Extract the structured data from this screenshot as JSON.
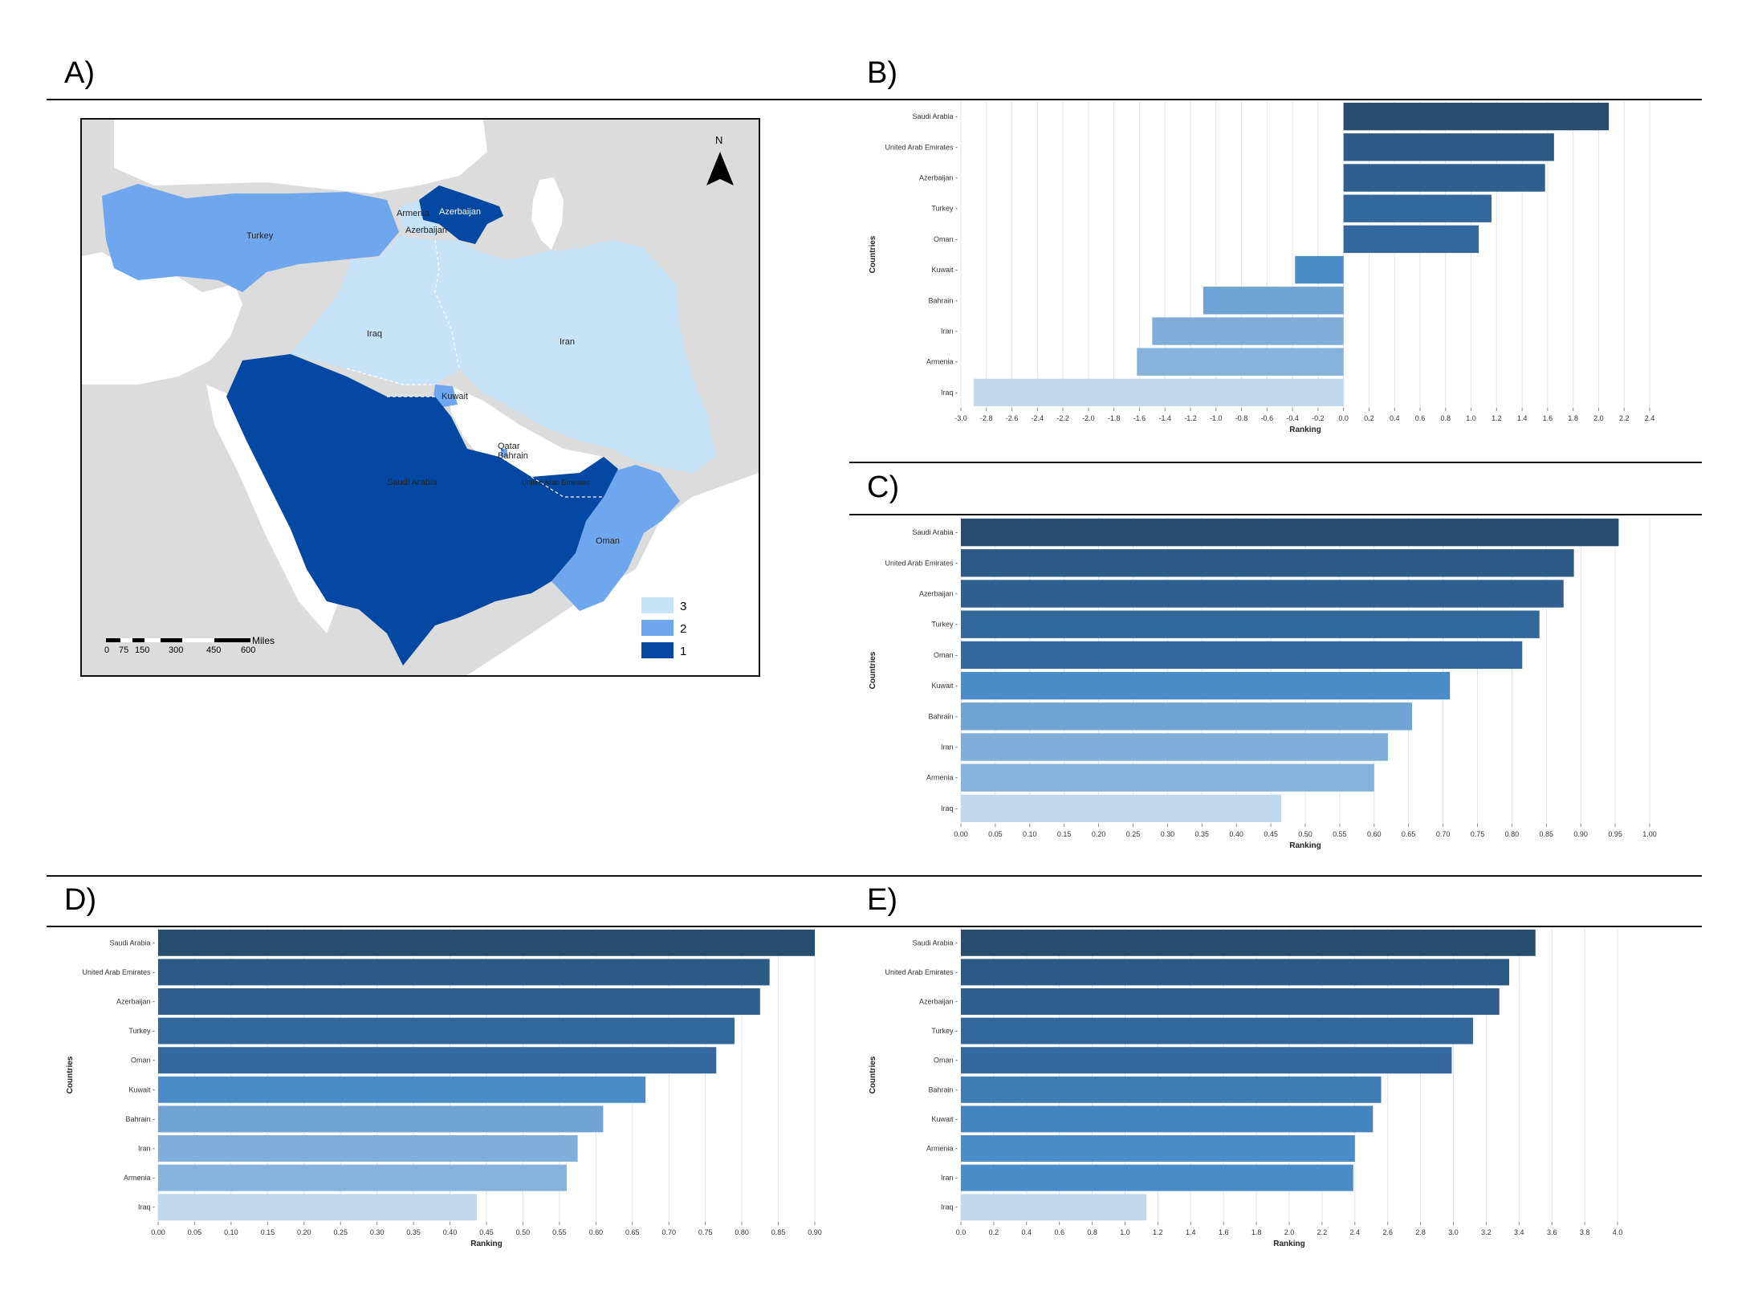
{
  "panels": {
    "A": "A)",
    "B": "B)",
    "C": "C)",
    "D": "D)",
    "E": "E)"
  },
  "map": {
    "labels": {
      "turkey": "Turkey",
      "armenia": "Armenia",
      "azerbaijan": "Azerbaijan",
      "azerbaijan_exclave": "Azerbaijan",
      "iraq": "Iraq",
      "iran": "Iran",
      "kuwait": "Kuwait",
      "bahrain": "Bahrain",
      "qatar": "Qatar",
      "saudi_arabia": "Saudi Arabia",
      "uae": "United Arab Emirates",
      "oman": "Oman"
    },
    "north_label": "N",
    "legend": [
      {
        "value": "3",
        "color": "#c6e3f8"
      },
      {
        "value": "2",
        "color": "#6fa7ef"
      },
      {
        "value": "1",
        "color": "#0349a3"
      }
    ],
    "scale": {
      "unit": "Miles",
      "ticks": [
        "0",
        "75",
        "150",
        "300",
        "450",
        "600"
      ]
    },
    "colors": {
      "land": "#dcdcdc",
      "sea": "#ffffff",
      "class1": "#0349a3",
      "class2": "#6fa7ef",
      "class3": "#c6e3f8"
    }
  },
  "chart_data": [
    {
      "id": "B",
      "type": "bar",
      "orientation": "horizontal",
      "categories": [
        "Saudi Arabia",
        "United Arab Emirates",
        "Azerbaijan",
        "Turkey",
        "Oman",
        "Kuwait",
        "Bahrain",
        "Iran",
        "Armenia",
        "Iraq"
      ],
      "values": [
        2.08,
        1.65,
        1.58,
        1.16,
        1.06,
        -0.38,
        -1.1,
        -1.5,
        -1.62,
        -2.9
      ],
      "colors": [
        "#274c6e",
        "#2c5a86",
        "#2e5f8e",
        "#33689c",
        "#35689f",
        "#4a8cc9",
        "#6ea3d4",
        "#7eaed9",
        "#86b3db",
        "#c0d9ef"
      ],
      "xlim": [
        -3.0,
        2.4
      ],
      "xticks": [
        "-3.0",
        "-2.8",
        "-2.6",
        "-2.4",
        "-2.2",
        "-2.0",
        "-1.8",
        "-1.6",
        "-1.4",
        "-1.2",
        "-1.0",
        "-0.8",
        "-0.6",
        "-0.4",
        "-0.2",
        "0.0",
        "0.2",
        "0.4",
        "0.6",
        "0.8",
        "1.0",
        "1.2",
        "1.4",
        "1.6",
        "1.8",
        "2.0",
        "2.2",
        "2.4"
      ],
      "xlabel": "Ranking",
      "ylabel": "Countries",
      "grid": true
    },
    {
      "id": "C",
      "type": "bar",
      "orientation": "horizontal",
      "categories": [
        "Saudi Arabia",
        "United Arab Emirates",
        "Azerbaijan",
        "Turkey",
        "Oman",
        "Kuwait",
        "Bahrain",
        "Iran",
        "Armenia",
        "Iraq"
      ],
      "values": [
        0.955,
        0.89,
        0.875,
        0.84,
        0.815,
        0.71,
        0.655,
        0.62,
        0.6,
        0.465
      ],
      "colors": [
        "#274c6e",
        "#2c5a86",
        "#2e5f8e",
        "#33689c",
        "#35689f",
        "#4a8cc9",
        "#6ea3d4",
        "#7eaed9",
        "#86b3db",
        "#c0d9ef"
      ],
      "xlim": [
        0.0,
        1.0
      ],
      "xticks": [
        "0.00",
        "0.05",
        "0.10",
        "0.15",
        "0.20",
        "0.25",
        "0.30",
        "0.35",
        "0.40",
        "0.45",
        "0.50",
        "0.55",
        "0.60",
        "0.65",
        "0.70",
        "0.75",
        "0.80",
        "0.85",
        "0.90",
        "0.95",
        "1.00"
      ],
      "xlabel": "Ranking",
      "ylabel": "Countries",
      "grid": true
    },
    {
      "id": "D",
      "type": "bar",
      "orientation": "horizontal",
      "categories": [
        "Saudi Arabia",
        "United Arab Emirates",
        "Azerbaijan",
        "Turkey",
        "Oman",
        "Kuwait",
        "Bahrain",
        "Iran",
        "Armenia",
        "Iraq"
      ],
      "values": [
        0.9,
        0.838,
        0.825,
        0.79,
        0.765,
        0.668,
        0.61,
        0.575,
        0.56,
        0.437
      ],
      "colors": [
        "#274c6e",
        "#2c5a86",
        "#2e5f8e",
        "#33689c",
        "#35689f",
        "#4a8cc9",
        "#6ea3d4",
        "#7eaed9",
        "#86b3db",
        "#c0d9ef"
      ],
      "xlim": [
        0.0,
        0.9
      ],
      "xticks": [
        "0.00",
        "0.05",
        "0.10",
        "0.15",
        "0.20",
        "0.25",
        "0.30",
        "0.35",
        "0.40",
        "0.45",
        "0.50",
        "0.55",
        "0.60",
        "0.65",
        "0.70",
        "0.75",
        "0.80",
        "0.85",
        "0.90"
      ],
      "xlabel": "Ranking",
      "ylabel": "Countries",
      "grid": true
    },
    {
      "id": "E",
      "type": "bar",
      "orientation": "horizontal",
      "categories": [
        "Saudi Arabia",
        "United Arab Emirates",
        "Azerbaijan",
        "Turkey",
        "Oman",
        "Bahrain",
        "Kuwait",
        "Armenia",
        "Iran",
        "Iraq"
      ],
      "values": [
        3.5,
        3.34,
        3.28,
        3.12,
        2.99,
        2.56,
        2.51,
        2.4,
        2.39,
        1.13
      ],
      "colors": [
        "#274c6e",
        "#2c5a86",
        "#2e5f8e",
        "#33689c",
        "#35689f",
        "#3f7db8",
        "#4484c1",
        "#4a8cc9",
        "#4a8cc9",
        "#c0d9ef"
      ],
      "xlim": [
        0.0,
        4.0
      ],
      "xticks": [
        "0.0",
        "0.2",
        "0.4",
        "0.6",
        "0.8",
        "1.0",
        "1.2",
        "1.4",
        "1.6",
        "1.8",
        "2.0",
        "2.2",
        "2.4",
        "2.6",
        "2.8",
        "3.0",
        "3.2",
        "3.4",
        "3.6",
        "3.8",
        "4.0"
      ],
      "xlabel": "Ranking",
      "ylabel": "Countries",
      "grid": true
    }
  ]
}
